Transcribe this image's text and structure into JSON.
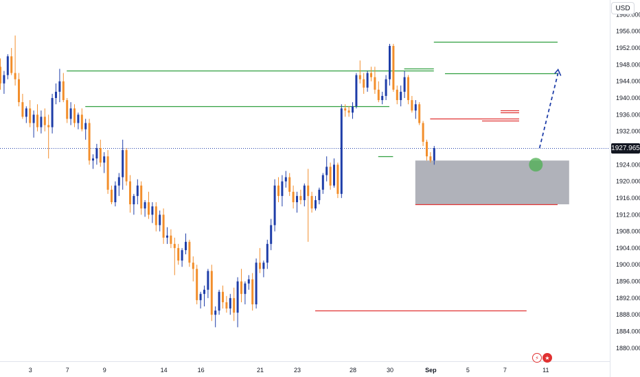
{
  "currency": "USD",
  "last_price": "1927.965",
  "icons": [
    "flash-icon",
    "us-flag-icon"
  ],
  "colors": {
    "bull": "#1e3da8",
    "bear": "#f28e2b",
    "support_line": "#2e9e3e",
    "resistance_line": "#e03131",
    "zone": "#a7aab2",
    "target_marker": "#4caf50",
    "projection": "#1e3da8"
  },
  "chart_data": {
    "type": "candlestick",
    "ylim": [
      1878,
      1964
    ],
    "y_ticks": [
      "1960.000",
      "1956.000",
      "1952.000",
      "1948.000",
      "1944.000",
      "1940.000",
      "1936.000",
      "1932.000",
      "1928.000",
      "1924.000",
      "1920.000",
      "1916.000",
      "1912.000",
      "1908.000",
      "1904.000",
      "1900.000",
      "1896.000",
      "1892.000",
      "1888.000",
      "1884.000",
      "1880.000"
    ],
    "y_tick_values": [
      1960,
      1956,
      1952,
      1948,
      1944,
      1940,
      1936,
      1932,
      1928,
      1924,
      1920,
      1916,
      1912,
      1908,
      1904,
      1900,
      1896,
      1892,
      1888,
      1884,
      1880
    ],
    "x_ticks": [
      "3",
      "7",
      "9",
      "14",
      "16",
      "21",
      "23",
      "28",
      "30",
      "Sep",
      "5",
      "7",
      "11"
    ],
    "x_tick_index": [
      8,
      18,
      28,
      44,
      54,
      70,
      80,
      95,
      105,
      116,
      126,
      136,
      147
    ],
    "last_price": 1927.965,
    "candles": [
      [
        1947.5,
        1949.5,
        1942.0,
        1943.5
      ],
      [
        1943.5,
        1946.5,
        1941.0,
        1945.5
      ],
      [
        1945.5,
        1950.5,
        1944.5,
        1950.0
      ],
      [
        1950.0,
        1952.0,
        1945.5,
        1946.0
      ],
      [
        1946.0,
        1955.0,
        1943.0,
        1944.5
      ],
      [
        1944.5,
        1946.0,
        1938.0,
        1939.0
      ],
      [
        1939.0,
        1941.0,
        1935.0,
        1935.5
      ],
      [
        1935.5,
        1938.0,
        1934.0,
        1937.5
      ],
      [
        1937.5,
        1939.5,
        1933.0,
        1934.0
      ],
      [
        1934.0,
        1937.0,
        1930.5,
        1936.0
      ],
      [
        1936.0,
        1938.5,
        1932.0,
        1933.0
      ],
      [
        1933.0,
        1937.0,
        1931.5,
        1935.5
      ],
      [
        1935.5,
        1937.5,
        1932.0,
        1933.5
      ],
      [
        1933.5,
        1936.0,
        1925.5,
        1933.0
      ],
      [
        1933.0,
        1941.0,
        1931.5,
        1940.0
      ],
      [
        1940.0,
        1943.5,
        1938.5,
        1941.5
      ],
      [
        1941.5,
        1947.0,
        1939.0,
        1944.0
      ],
      [
        1944.0,
        1946.0,
        1939.0,
        1939.5
      ],
      [
        1939.5,
        1940.0,
        1934.0,
        1935.0
      ],
      [
        1935.0,
        1939.0,
        1933.5,
        1937.5
      ],
      [
        1937.5,
        1938.5,
        1933.0,
        1934.0
      ],
      [
        1934.0,
        1936.5,
        1932.5,
        1936.0
      ],
      [
        1936.0,
        1937.5,
        1932.0,
        1932.5
      ],
      [
        1932.5,
        1935.0,
        1930.0,
        1934.0
      ],
      [
        1934.0,
        1935.0,
        1924.0,
        1925.0
      ],
      [
        1925.0,
        1926.5,
        1923.0,
        1925.5
      ],
      [
        1925.5,
        1929.0,
        1924.0,
        1928.0
      ],
      [
        1928.0,
        1930.0,
        1923.5,
        1924.5
      ],
      [
        1924.5,
        1927.0,
        1922.0,
        1926.0
      ],
      [
        1926.0,
        1927.5,
        1917.0,
        1918.0
      ],
      [
        1918.0,
        1919.0,
        1914.5,
        1915.0
      ],
      [
        1915.0,
        1920.0,
        1914.0,
        1919.0
      ],
      [
        1919.0,
        1922.0,
        1916.5,
        1921.0
      ],
      [
        1921.0,
        1930.0,
        1918.0,
        1927.5
      ],
      [
        1927.5,
        1928.0,
        1919.0,
        1920.0
      ],
      [
        1920.0,
        1921.5,
        1912.5,
        1914.5
      ],
      [
        1914.5,
        1917.0,
        1912.0,
        1916.5
      ],
      [
        1916.5,
        1920.5,
        1914.5,
        1919.0
      ],
      [
        1919.0,
        1920.0,
        1912.0,
        1913.5
      ],
      [
        1913.5,
        1915.5,
        1911.5,
        1915.0
      ],
      [
        1915.0,
        1917.5,
        1911.0,
        1912.0
      ],
      [
        1912.0,
        1915.0,
        1910.0,
        1914.0
      ],
      [
        1914.0,
        1915.0,
        1908.0,
        1909.5
      ],
      [
        1909.5,
        1913.0,
        1908.0,
        1912.0
      ],
      [
        1912.0,
        1913.5,
        1905.0,
        1906.5
      ],
      [
        1906.5,
        1909.0,
        1905.0,
        1907.0
      ],
      [
        1907.0,
        1908.5,
        1904.0,
        1905.0
      ],
      [
        1905.0,
        1906.5,
        1897.5,
        1904.0
      ],
      [
        1904.0,
        1905.0,
        1900.0,
        1901.0
      ],
      [
        1901.0,
        1904.0,
        1899.5,
        1903.5
      ],
      [
        1903.5,
        1907.5,
        1902.5,
        1905.5
      ],
      [
        1905.5,
        1906.0,
        1899.5,
        1900.5
      ],
      [
        1900.5,
        1902.0,
        1896.0,
        1899.0
      ],
      [
        1899.0,
        1900.0,
        1890.5,
        1891.5
      ],
      [
        1891.5,
        1893.5,
        1889.5,
        1893.0
      ],
      [
        1893.0,
        1895.0,
        1890.0,
        1894.0
      ],
      [
        1894.0,
        1899.0,
        1892.0,
        1898.5
      ],
      [
        1898.5,
        1900.0,
        1886.5,
        1888.0
      ],
      [
        1888.0,
        1890.0,
        1885.0,
        1889.0
      ],
      [
        1889.0,
        1894.0,
        1888.0,
        1893.5
      ],
      [
        1893.5,
        1895.0,
        1889.5,
        1891.0
      ],
      [
        1891.0,
        1892.5,
        1888.5,
        1889.5
      ],
      [
        1889.5,
        1893.0,
        1888.0,
        1892.0
      ],
      [
        1892.0,
        1894.5,
        1886.5,
        1888.5
      ],
      [
        1888.5,
        1897.0,
        1885.0,
        1896.0
      ],
      [
        1896.0,
        1899.0,
        1891.0,
        1893.0
      ],
      [
        1893.0,
        1896.0,
        1890.5,
        1895.5
      ],
      [
        1895.5,
        1897.5,
        1894.0,
        1896.5
      ],
      [
        1896.5,
        1898.0,
        1889.0,
        1890.5
      ],
      [
        1890.5,
        1901.5,
        1889.5,
        1900.5
      ],
      [
        1900.5,
        1904.0,
        1898.0,
        1899.0
      ],
      [
        1899.0,
        1901.0,
        1897.0,
        1900.5
      ],
      [
        1900.5,
        1906.0,
        1899.0,
        1905.0
      ],
      [
        1905.0,
        1911.0,
        1903.5,
        1909.5
      ],
      [
        1909.5,
        1920.5,
        1908.0,
        1919.0
      ],
      [
        1919.0,
        1921.0,
        1915.0,
        1916.5
      ],
      [
        1916.5,
        1921.5,
        1914.0,
        1920.0
      ],
      [
        1920.0,
        1922.5,
        1918.5,
        1921.0
      ],
      [
        1921.0,
        1922.0,
        1916.5,
        1917.5
      ],
      [
        1917.5,
        1919.0,
        1913.5,
        1915.0
      ],
      [
        1915.0,
        1917.5,
        1912.5,
        1916.5
      ],
      [
        1916.5,
        1918.0,
        1914.5,
        1915.5
      ],
      [
        1915.5,
        1919.5,
        1914.0,
        1919.0
      ],
      [
        1919.0,
        1923.0,
        1905.5,
        1916.5
      ],
      [
        1916.5,
        1917.5,
        1912.5,
        1913.5
      ],
      [
        1913.5,
        1916.5,
        1913.0,
        1915.5
      ],
      [
        1915.5,
        1918.5,
        1914.5,
        1918.0
      ],
      [
        1918.0,
        1922.0,
        1917.0,
        1921.5
      ],
      [
        1921.5,
        1926.0,
        1920.0,
        1923.5
      ],
      [
        1923.5,
        1924.5,
        1918.0,
        1919.0
      ],
      [
        1919.0,
        1925.5,
        1918.5,
        1924.0
      ],
      [
        1924.0,
        1924.5,
        1916.0,
        1917.0
      ],
      [
        1917.0,
        1938.5,
        1916.0,
        1937.5
      ],
      [
        1937.5,
        1938.5,
        1935.5,
        1937.0
      ],
      [
        1937.0,
        1938.0,
        1935.5,
        1936.5
      ],
      [
        1936.5,
        1939.0,
        1935.0,
        1938.0
      ],
      [
        1938.0,
        1946.0,
        1937.5,
        1945.5
      ],
      [
        1945.5,
        1949.0,
        1943.5,
        1944.5
      ],
      [
        1944.5,
        1946.0,
        1941.0,
        1942.5
      ],
      [
        1942.5,
        1946.5,
        1941.5,
        1946.0
      ],
      [
        1946.0,
        1947.5,
        1944.0,
        1945.0
      ],
      [
        1945.0,
        1947.5,
        1941.0,
        1942.0
      ],
      [
        1942.0,
        1944.0,
        1939.0,
        1939.5
      ],
      [
        1939.5,
        1941.5,
        1938.5,
        1940.5
      ],
      [
        1940.5,
        1945.5,
        1939.5,
        1944.5
      ],
      [
        1944.5,
        1953.0,
        1943.0,
        1952.5
      ],
      [
        1952.5,
        1953.0,
        1941.5,
        1942.0
      ],
      [
        1942.0,
        1943.0,
        1938.5,
        1939.5
      ],
      [
        1939.5,
        1943.0,
        1938.0,
        1941.5
      ],
      [
        1941.5,
        1946.5,
        1940.0,
        1945.0
      ],
      [
        1945.0,
        1945.5,
        1938.5,
        1939.5
      ],
      [
        1939.5,
        1940.5,
        1936.5,
        1937.0
      ],
      [
        1937.0,
        1939.5,
        1935.0,
        1938.5
      ],
      [
        1938.5,
        1939.0,
        1933.5,
        1934.0
      ],
      [
        1934.0,
        1934.5,
        1928.5,
        1929.5
      ],
      [
        1929.5,
        1930.0,
        1925.0,
        1926.0
      ],
      [
        1926.0,
        1927.0,
        1924.5,
        1925.0
      ],
      [
        1925.0,
        1928.5,
        1924.0,
        1927.965
      ]
    ],
    "levels": [
      {
        "kind": "support",
        "value": 1946.5,
        "from": 18,
        "to": 117
      },
      {
        "kind": "support",
        "value": 1938.0,
        "from": 23,
        "to": 105
      },
      {
        "kind": "support",
        "value": 1953.5,
        "from": 117,
        "to": 152
      },
      {
        "kind": "support",
        "value": 1946.0,
        "from": 120,
        "to": 152
      },
      {
        "kind": "support",
        "value": 1947.0,
        "from": 109,
        "to": 117
      },
      {
        "kind": "support",
        "value": 1926.0,
        "from": 102,
        "to": 106
      },
      {
        "kind": "resistance",
        "value": 1889.0,
        "from": 85,
        "to": 142
      },
      {
        "kind": "resistance",
        "value": 1914.5,
        "from": 112,
        "to": 152
      },
      {
        "kind": "resistance",
        "value": 1935.0,
        "from": 116,
        "to": 140
      },
      {
        "kind": "resistance",
        "value": 1934.5,
        "from": 130,
        "to": 140
      },
      {
        "kind": "resistance",
        "value": 1936.5,
        "from": 135,
        "to": 140
      },
      {
        "kind": "resistance",
        "value": 1937.0,
        "from": 135,
        "to": 140
      }
    ],
    "zone": {
      "from": 112,
      "to": 152,
      "top": 1925.0,
      "bottom": 1914.5
    },
    "target_marker": {
      "index": 144.5,
      "value": 1924.0
    },
    "projection": [
      [
        145.5,
        1928.0
      ],
      [
        150.5,
        1946.0
      ]
    ]
  }
}
